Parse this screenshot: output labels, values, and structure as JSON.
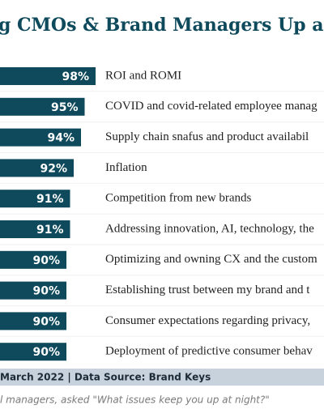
{
  "chart_data": {
    "type": "bar",
    "orientation": "horizontal",
    "title": "g CMOs & Brand Managers Up at N",
    "categories": [
      "ROI and ROMI",
      "COVID and covid-related employee manag",
      "Supply chain snafus and product availabil",
      "Inflation",
      "Competition from new brands",
      "Addressing innovation, AI, technology, the",
      "Optimizing and owning CX and the custom",
      "Establishing trust between my brand and t",
      "Consumer expectations regarding privacy,",
      "Deployment of predictive consumer behav"
    ],
    "values": [
      98,
      95,
      94,
      92,
      91,
      91,
      90,
      90,
      90,
      90
    ],
    "value_labels": [
      "98%",
      "95%",
      "94%",
      "92%",
      "91%",
      "91%",
      "90%",
      "90%",
      "90%",
      "90%"
    ],
    "color": "#0e4a5c",
    "source": "March 2022 | Data Source: Brand Keys",
    "note": "l managers, asked \"What issues keep you up at night?\""
  }
}
